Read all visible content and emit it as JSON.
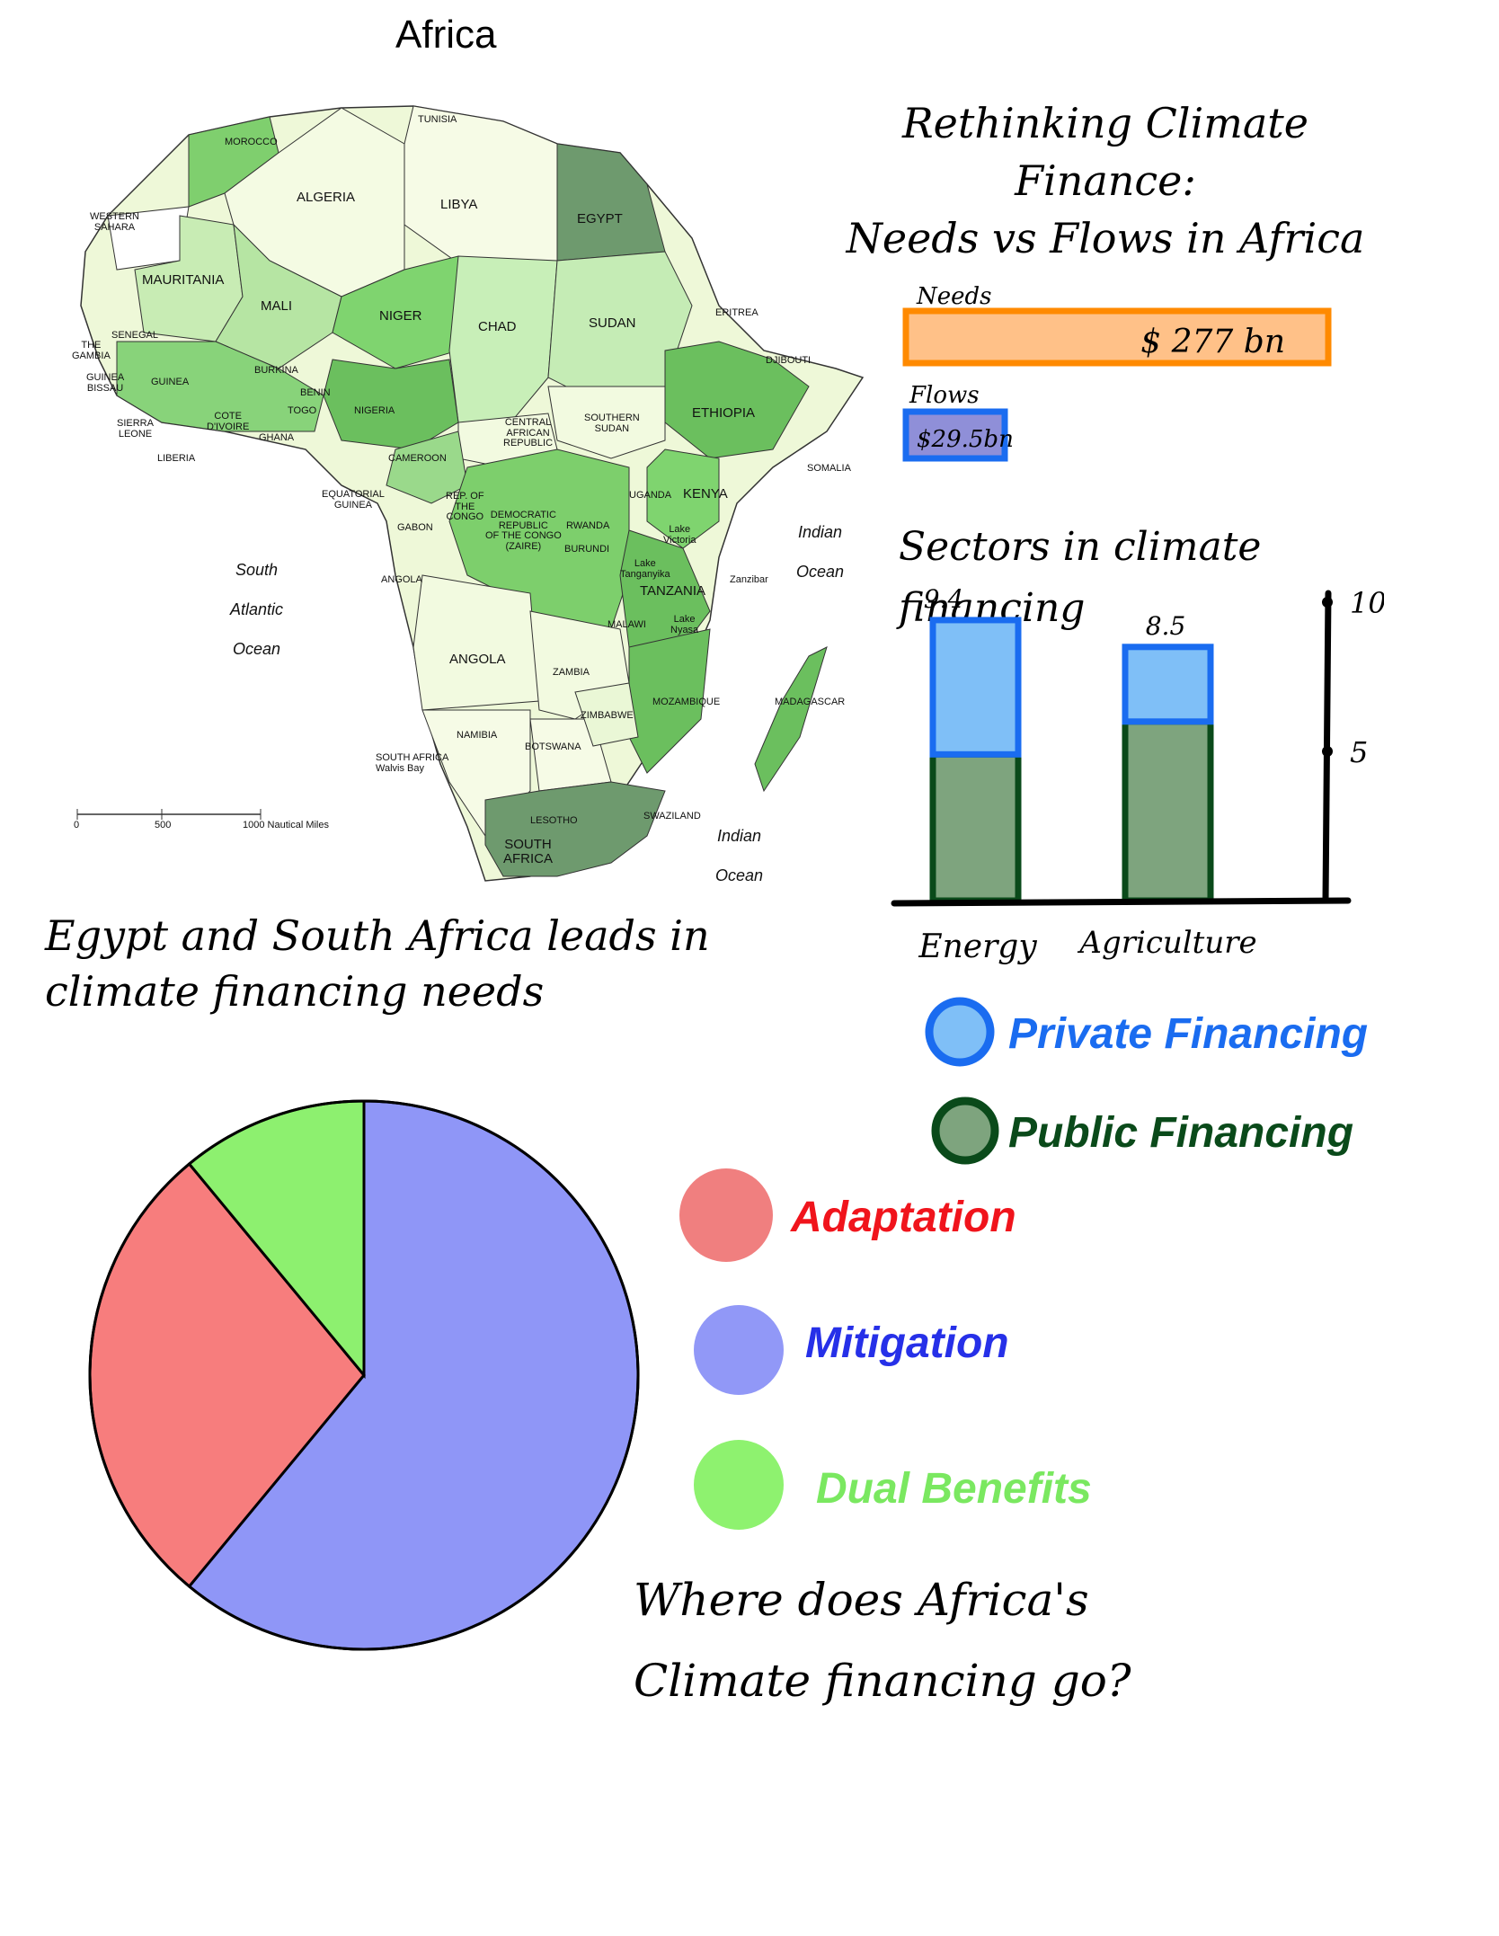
{
  "map": {
    "title": "Africa",
    "labels": {
      "tunisia": "TUNISIA",
      "morocco": "MOROCCO",
      "algeria": "ALGERIA",
      "libya": "LIBYA",
      "egypt": "EGYPT",
      "western_sahara": "WESTERN\nSAHARA",
      "mauritania": "MAURITANIA",
      "mali": "MALI",
      "niger": "NIGER",
      "chad": "CHAD",
      "sudan": "SUDAN",
      "eritrea": "ERITREA",
      "djibouti": "DJIBOUTI",
      "senegal": "SENEGAL",
      "gambia": "THE\nGAMBIA",
      "guinea_bissau": "GUINEA\nBISSAU",
      "guinea": "GUINEA",
      "burkina": "BURKINA",
      "benin": "BENIN",
      "togo": "TOGO",
      "sierra_leone": "SIERRA\nLEONE",
      "liberia": "LIBERIA",
      "cote_divoire": "COTE\nD'IVOIRE",
      "ghana": "GHANA",
      "nigeria": "NIGERIA",
      "car": "CENTRAL\nAFRICAN\nREPUBLIC",
      "south_sudan": "SOUTHERN\nSUDAN",
      "ethiopia": "ETHIOPIA",
      "cameroon": "CAMEROON",
      "somalia": "SOMALIA",
      "equatorial_guinea": "EQUATORIAL\nGUINEA",
      "gabon": "GABON",
      "rep_congo": "REP. OF\nTHE\nCONGO",
      "drc": "DEMOCRATIC\nREPUBLIC\nOF THE CONGO\n(ZAIRE)",
      "uganda": "UGANDA",
      "kenya": "KENYA",
      "rwanda": "RWANDA",
      "burundi": "BURUNDI",
      "lake_victoria": "Lake\nVictoria",
      "lake_tanganyika": "Lake\nTanganyika",
      "tanzania": "TANZANIA",
      "zanzibar": "Zanzibar",
      "angola_small": "ANGOLA",
      "angola": "ANGOLA",
      "malawi": "MALAWI",
      "lake_nyasa": "Lake\nNyasa",
      "zambia": "ZAMBIA",
      "mozambique": "MOZAMBIQUE",
      "madagascar": "MADAGASCAR",
      "zimbabwe": "ZIMBABWE",
      "namibia": "NAMIBIA",
      "botswana": "BOTSWANA",
      "walvis_bay": "SOUTH AFRICA\nWalvis Bay",
      "swaziland": "SWAZILAND",
      "lesotho": "LESOTHO",
      "south_africa": "SOUTH\nAFRICA"
    },
    "oceans": {
      "south_atlantic": "South\nAtlantic\nOcean",
      "indian_east": "Indian\nOcean",
      "indian_south": "Indian\nOcean"
    },
    "scale": {
      "zero": "0",
      "mid": "500",
      "end": "1000 Nautical Miles"
    }
  },
  "title": "Rethinking Climate\nFinance:\nNeeds vs Flows in Africa",
  "needs_flows": {
    "chart_data": {
      "type": "bar",
      "orientation": "horizontal",
      "categories": [
        "Needs",
        "Flows"
      ],
      "values": [
        277,
        29.5
      ],
      "value_labels": [
        "$ 277 bn",
        "$29.5bn"
      ],
      "colors": [
        "#ff9a1f",
        "#1a6cf0"
      ]
    }
  },
  "sectors": {
    "title": "Sectors in climate\nfinancing",
    "chart_data": {
      "type": "bar",
      "stacked": true,
      "categories": [
        "Energy",
        "Agriculture"
      ],
      "totals": [
        9.4,
        8.5
      ],
      "total_labels": [
        "9.4",
        "8.5"
      ],
      "series": [
        {
          "name": "Private Financing",
          "values": [
            4.5,
            2.5
          ],
          "color": "#7fbff7"
        },
        {
          "name": "Public Financing",
          "values": [
            4.9,
            6.0
          ],
          "color": "#7ea47e"
        }
      ],
      "ylim": [
        0,
        10
      ],
      "yticks": [
        5,
        10
      ],
      "ytick_labels": [
        "5",
        "10"
      ],
      "legend": "bottom"
    }
  },
  "note": "Egypt and South Africa leads in\n   climate financing needs",
  "pie": {
    "chart_data": {
      "type": "pie",
      "labels": [
        "Mitigation",
        "Adaptation",
        "Dual Benefits"
      ],
      "values": [
        61,
        28,
        11
      ],
      "colors": [
        "#8f96f7",
        "#f77d7d",
        "#8df06f"
      ],
      "legend": "right"
    },
    "legend": [
      {
        "label": "Adaptation",
        "color": "#f07f7f",
        "text_color": "#f0141c"
      },
      {
        "label": "Mitigation",
        "color": "#9198f7",
        "text_color": "#2630e8"
      },
      {
        "label": "Dual Benefits",
        "color": "#8ef26f",
        "text_color": "#7ae860"
      }
    ]
  },
  "question": "Where does Africa's\nClimate financing go?"
}
